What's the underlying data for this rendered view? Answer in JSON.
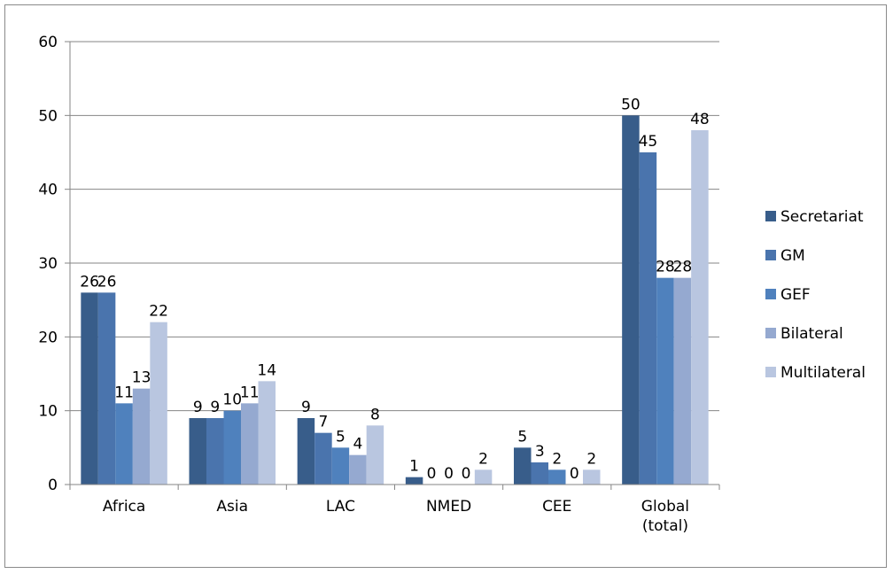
{
  "chart_data": {
    "type": "bar",
    "title": "",
    "xlabel": "",
    "ylabel": "",
    "ylim": [
      0,
      60
    ],
    "yticks": [
      0,
      10,
      20,
      30,
      40,
      50,
      60
    ],
    "grid": true,
    "legend_position": "right",
    "categories": [
      "Africa",
      "Asia",
      "LAC",
      "NMED",
      "CEE",
      "Global (total)"
    ],
    "series": [
      {
        "name": "Secretariat",
        "color": "#385d8a",
        "values": [
          26,
          9,
          9,
          1,
          5,
          50
        ]
      },
      {
        "name": "GM",
        "color": "#4a74ad",
        "values": [
          26,
          9,
          7,
          0,
          3,
          45
        ]
      },
      {
        "name": "GEF",
        "color": "#4f81bd",
        "values": [
          11,
          10,
          5,
          0,
          2,
          28
        ]
      },
      {
        "name": "Bilateral",
        "color": "#95a9d0",
        "values": [
          13,
          11,
          4,
          0,
          0,
          28
        ]
      },
      {
        "name": "Multilateral",
        "color": "#b9c6e0",
        "values": [
          22,
          14,
          8,
          2,
          2,
          48
        ]
      }
    ]
  }
}
